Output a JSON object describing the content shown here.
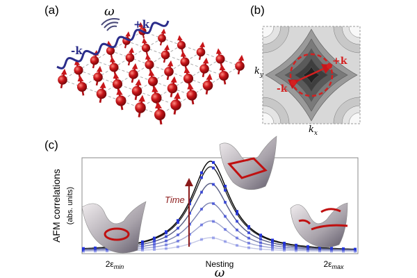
{
  "panel_a": {
    "label": "(a)",
    "omega": "ω",
    "plus_k": "+k",
    "minus_k": "-k"
  },
  "panel_b": {
    "label": "(b)",
    "ky": "k",
    "ky_sub": "y",
    "kx": "k",
    "kx_sub": "x",
    "plus_k": "+k",
    "minus_k": "-k"
  },
  "panel_c": {
    "label": "(c)",
    "y_label": "AFM correlations",
    "y_sublabel": "(abs. units)",
    "time": "Time",
    "x_labels": [
      {
        "text": "2ε",
        "sub": "min"
      },
      {
        "text": "Nesting"
      },
      {
        "text": "2ε",
        "sub": "max"
      }
    ],
    "x_title": "ω"
  }
}
